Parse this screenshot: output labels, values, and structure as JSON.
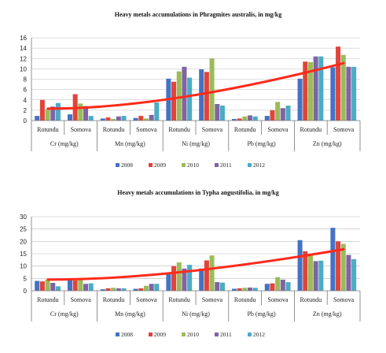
{
  "colors": {
    "2008": "#4472c4",
    "2009": "#e0443a",
    "2010": "#9bbb59",
    "2011": "#8064a2",
    "2012": "#4bacc6",
    "trend": "#ff2a1a"
  },
  "chart_data": [
    {
      "type": "bar",
      "title": "Heavy metals accumulations in Phragmites australis, in mg/kg",
      "ylim": [
        0,
        16
      ],
      "yticks": [
        0,
        2,
        4,
        6,
        8,
        10,
        12,
        14,
        16
      ],
      "groups": [
        "Cr (mg/kg)",
        "Mn (mg/kg)",
        "Ni (mg/kg)",
        "Pb (mg/kg)",
        "Zn (mg/kg)"
      ],
      "sites": [
        "Rotundu",
        "Somova"
      ],
      "categories": [
        "Cr (mg/kg) Rotundu",
        "Cr (mg/kg) Somova",
        "Mn (mg/kg) Rotundu",
        "Mn (mg/kg) Somova",
        "Ni (mg/kg) Rotundu",
        "Ni (mg/kg) Somova",
        "Pb (mg/kg) Rotundu",
        "Pb (mg/kg) Somova",
        "Zn (mg/kg) Rotundu",
        "Zn (mg/kg) Somova"
      ],
      "series": [
        {
          "name": "2008",
          "values": [
            0.9,
            1.2,
            0.4,
            0.5,
            8.1,
            9.9,
            0.3,
            0.9,
            8.1,
            10.3
          ]
        },
        {
          "name": "2009",
          "values": [
            4.0,
            5.1,
            0.6,
            0.9,
            7.5,
            9.4,
            0.4,
            2.0,
            11.4,
            14.3
          ]
        },
        {
          "name": "2010",
          "values": [
            2.2,
            3.3,
            0.3,
            0.4,
            9.5,
            12.0,
            0.8,
            3.6,
            11.3,
            12.7
          ]
        },
        {
          "name": "2011",
          "values": [
            2.7,
            2.8,
            0.8,
            1.1,
            10.4,
            3.2,
            1.0,
            2.4,
            12.4,
            10.4
          ]
        },
        {
          "name": "2012",
          "values": [
            3.4,
            0.9,
            0.9,
            3.5,
            8.3,
            2.9,
            0.8,
            2.9,
            12.4,
            10.4
          ]
        }
      ],
      "trendline": {
        "type": "polynomial",
        "start": 2.3,
        "end": 11.1
      },
      "legend": "bottom"
    },
    {
      "type": "bar",
      "title": "Heavy metals accumulations in Typha angustifolia, in mg/kg",
      "ylim": [
        0,
        30
      ],
      "yticks": [
        0,
        5,
        10,
        15,
        20,
        25,
        30
      ],
      "groups": [
        "Cr (mg/kg)",
        "Mn (mg/kg)",
        "Ni (mg/kg)",
        "Pb (mg/kg)",
        "Zn (mg/kg)"
      ],
      "sites": [
        "Rotundu",
        "Somova"
      ],
      "categories": [
        "Cr (mg/kg) Rotundu",
        "Cr (mg/kg) Somova",
        "Mn (mg/kg) Rotundu",
        "Mn (mg/kg) Somova",
        "Ni (mg/kg) Rotundu",
        "Ni (mg/kg) Somova",
        "Pb (mg/kg) Rotundu",
        "Pb (mg/kg) Somova",
        "Zn (mg/kg) Rotundu",
        "Zn (mg/kg) Somova"
      ],
      "series": [
        {
          "name": "2008",
          "values": [
            4.0,
            4.8,
            0.6,
            0.8,
            7.0,
            9.0,
            0.8,
            2.8,
            20.5,
            25.5
          ]
        },
        {
          "name": "2009",
          "values": [
            3.8,
            4.2,
            1.0,
            1.0,
            10.0,
            12.3,
            1.0,
            3.0,
            16.0,
            20.0
          ]
        },
        {
          "name": "2010",
          "values": [
            4.5,
            5.0,
            1.2,
            2.0,
            11.5,
            14.3,
            1.2,
            5.5,
            15.0,
            19.0
          ]
        },
        {
          "name": "2011",
          "values": [
            3.2,
            2.8,
            1.0,
            2.8,
            9.0,
            3.5,
            1.3,
            4.5,
            12.0,
            14.5
          ]
        },
        {
          "name": "2012",
          "values": [
            1.8,
            3.0,
            1.0,
            2.8,
            10.5,
            3.3,
            1.2,
            3.5,
            12.2,
            12.8
          ]
        }
      ],
      "trendline": {
        "type": "polynomial",
        "start": 4.5,
        "end": 16.8
      },
      "legend": "bottom"
    }
  ]
}
